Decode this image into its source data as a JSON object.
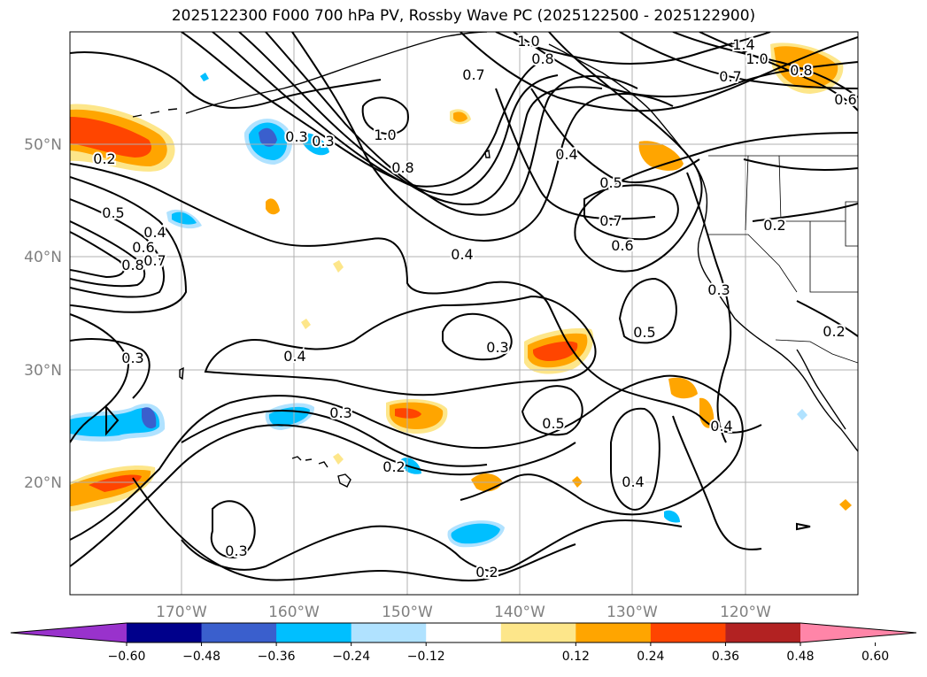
{
  "title": "2025122300 F000 700 hPa PV, Rossby Wave PC (2025122500 - 2025122900)",
  "lon_labels": [
    "170°W",
    "160°W",
    "150°W",
    "140°W",
    "130°W",
    "120°W"
  ],
  "lat_labels": [
    "50°N",
    "40°N",
    "30°N",
    "20°N"
  ],
  "colorbar": {
    "ticks": [
      "−0.60",
      "−0.48",
      "−0.36",
      "−0.24",
      "−0.12",
      "0.12",
      "0.24",
      "0.36",
      "0.48",
      "0.60"
    ],
    "colors": [
      "#9932cc",
      "#00008b",
      "#3a5fcd",
      "#00bfff",
      "#b0e2ff",
      "#ffffff",
      "#fde68a",
      "#ffa500",
      "#ff4500",
      "#b22222",
      "#ff85a8"
    ]
  },
  "contour_labels": [
    "1.0",
    "0.8",
    "1.4",
    "1.0",
    "0.8",
    "0.7",
    "0.6",
    "0.7",
    "1.0",
    "0.8",
    "0.4",
    "0.5",
    "0.7",
    "0.6",
    "0.2",
    "0.3",
    "0.5",
    "0.4",
    "0.6",
    "0.7",
    "0.8",
    "0.2",
    "0.3",
    "0.4",
    "0.4",
    "0.3",
    "0.3",
    "0.5",
    "0.3",
    "0.5",
    "0.2",
    "0.3",
    "0.4",
    "0.2",
    "0.4",
    "0.3",
    "0.2"
  ]
}
